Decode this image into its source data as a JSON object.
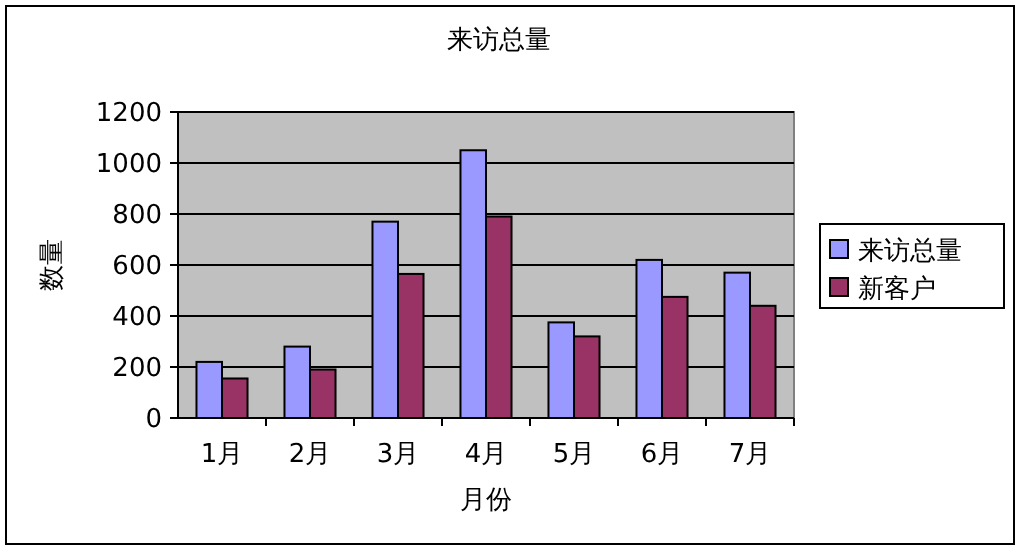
{
  "chart_data": {
    "type": "bar",
    "title": "来访总量",
    "xlabel": "月份",
    "ylabel": "数量",
    "categories": [
      "1月",
      "2月",
      "3月",
      "4月",
      "5月",
      "6月",
      "7月"
    ],
    "series": [
      {
        "name": "来访总量",
        "color": "#9999ff",
        "values": [
          220,
          280,
          770,
          1050,
          375,
          620,
          570
        ]
      },
      {
        "name": "新客户",
        "color": "#993366",
        "values": [
          155,
          190,
          565,
          790,
          320,
          475,
          440
        ]
      }
    ],
    "ylim": [
      0,
      1200
    ],
    "yticks": [
      0,
      200,
      400,
      600,
      800,
      1000,
      1200
    ],
    "grid": "y",
    "legend": "right"
  }
}
